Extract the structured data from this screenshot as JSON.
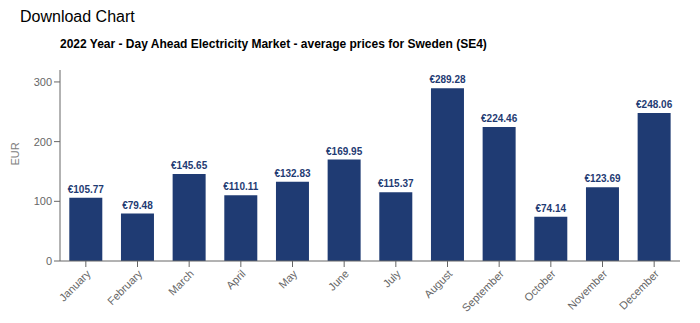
{
  "chart_data": {
    "type": "bar",
    "title": "2022 Year - Day Ahead Electricity Market - average prices for Sweden (SE4)",
    "ylabel": "EUR",
    "annotations": [
      "Download Chart"
    ],
    "categories": [
      "January",
      "February",
      "March",
      "April",
      "May",
      "June",
      "July",
      "August",
      "September",
      "October",
      "November",
      "December"
    ],
    "values": [
      105.77,
      79.48,
      145.65,
      110.11,
      132.83,
      169.95,
      115.37,
      289.28,
      224.46,
      74.14,
      123.69,
      248.06
    ],
    "value_labels": [
      "€105.77",
      "€79.48",
      "€145.65",
      "€110.11",
      "€132.83",
      "€169.95",
      "€115.37",
      "€289.28",
      "€224.46",
      "€74.14",
      "€123.69",
      "€248.06"
    ],
    "data_labels": true,
    "color": "#1f3b73",
    "ylim": [
      0,
      320
    ],
    "yticks": [
      0,
      100,
      200,
      300
    ],
    "grid": false
  }
}
